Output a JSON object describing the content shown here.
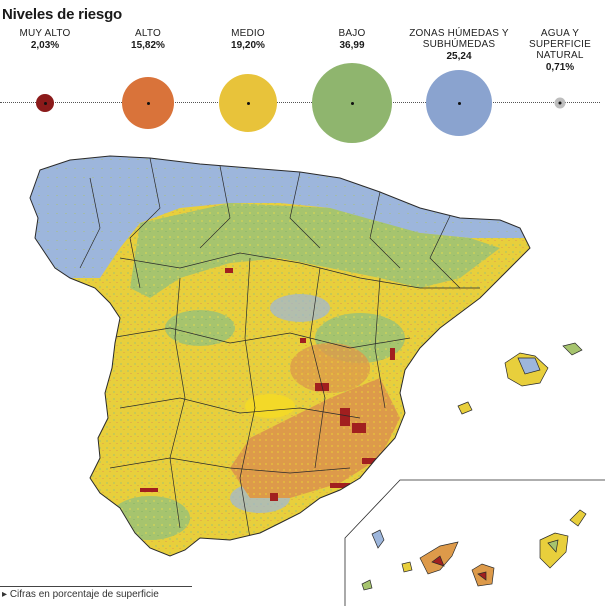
{
  "title": "Niveles de riesgo",
  "legend": {
    "items": [
      {
        "label": "MUY ALTO",
        "value": "2,03%",
        "color": "#8b1a1a"
      },
      {
        "label": "ALTO",
        "value": "15,82%",
        "color": "#d9733a"
      },
      {
        "label": "MEDIO",
        "value": "19,20%",
        "color": "#e8c33a"
      },
      {
        "label": "BAJO",
        "value": "36,99",
        "color": "#8fb56e"
      },
      {
        "label": "ZONAS HÚMEDAS Y SUBHÚMEDAS",
        "value": "25,24",
        "color": "#8aa3cf"
      },
      {
        "label": "AGUA Y SUPERFICIE NATURAL",
        "value": "0,71%",
        "color": "#bdbdbd"
      }
    ]
  },
  "footnote": "Cifras en porcentaje de superficie",
  "colors": {
    "humid": "#9db6dc",
    "low": "#a6c46e",
    "medium": "#e8cf3c",
    "high": "#dd9a4a",
    "very_high": "#a11f1f",
    "border": "#2a2a2a"
  }
}
